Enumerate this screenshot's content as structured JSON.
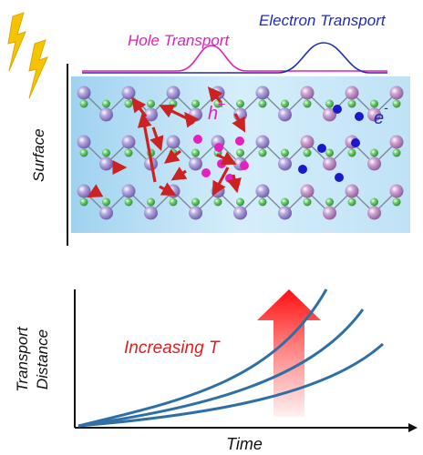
{
  "top_panel": {
    "electron_label": "Electron Transport",
    "hole_label": "Hole Transport",
    "surface_label": "Surface",
    "hole_symbol": "h",
    "hole_charge": "+",
    "electron_symbol": "e",
    "electron_charge": "-",
    "colors": {
      "electron": "#1f2bbf",
      "hole": "#e020b8",
      "lightning": "#f5c400",
      "arrow": "#cc2222",
      "atom_large": "#a89ad6",
      "atom_small": "#5fbf5f",
      "background": "#cfe9f8"
    }
  },
  "bottom_panel": {
    "ylabel_line1": "Transport",
    "ylabel_line2": "Distance",
    "xlabel": "Time",
    "annotation": "Increasing T",
    "colors": {
      "curves": "#2f6fa8",
      "annotation": "#e02020",
      "arrow_top": "#ff2020",
      "arrow_bottom": "#ffe0e0"
    }
  }
}
